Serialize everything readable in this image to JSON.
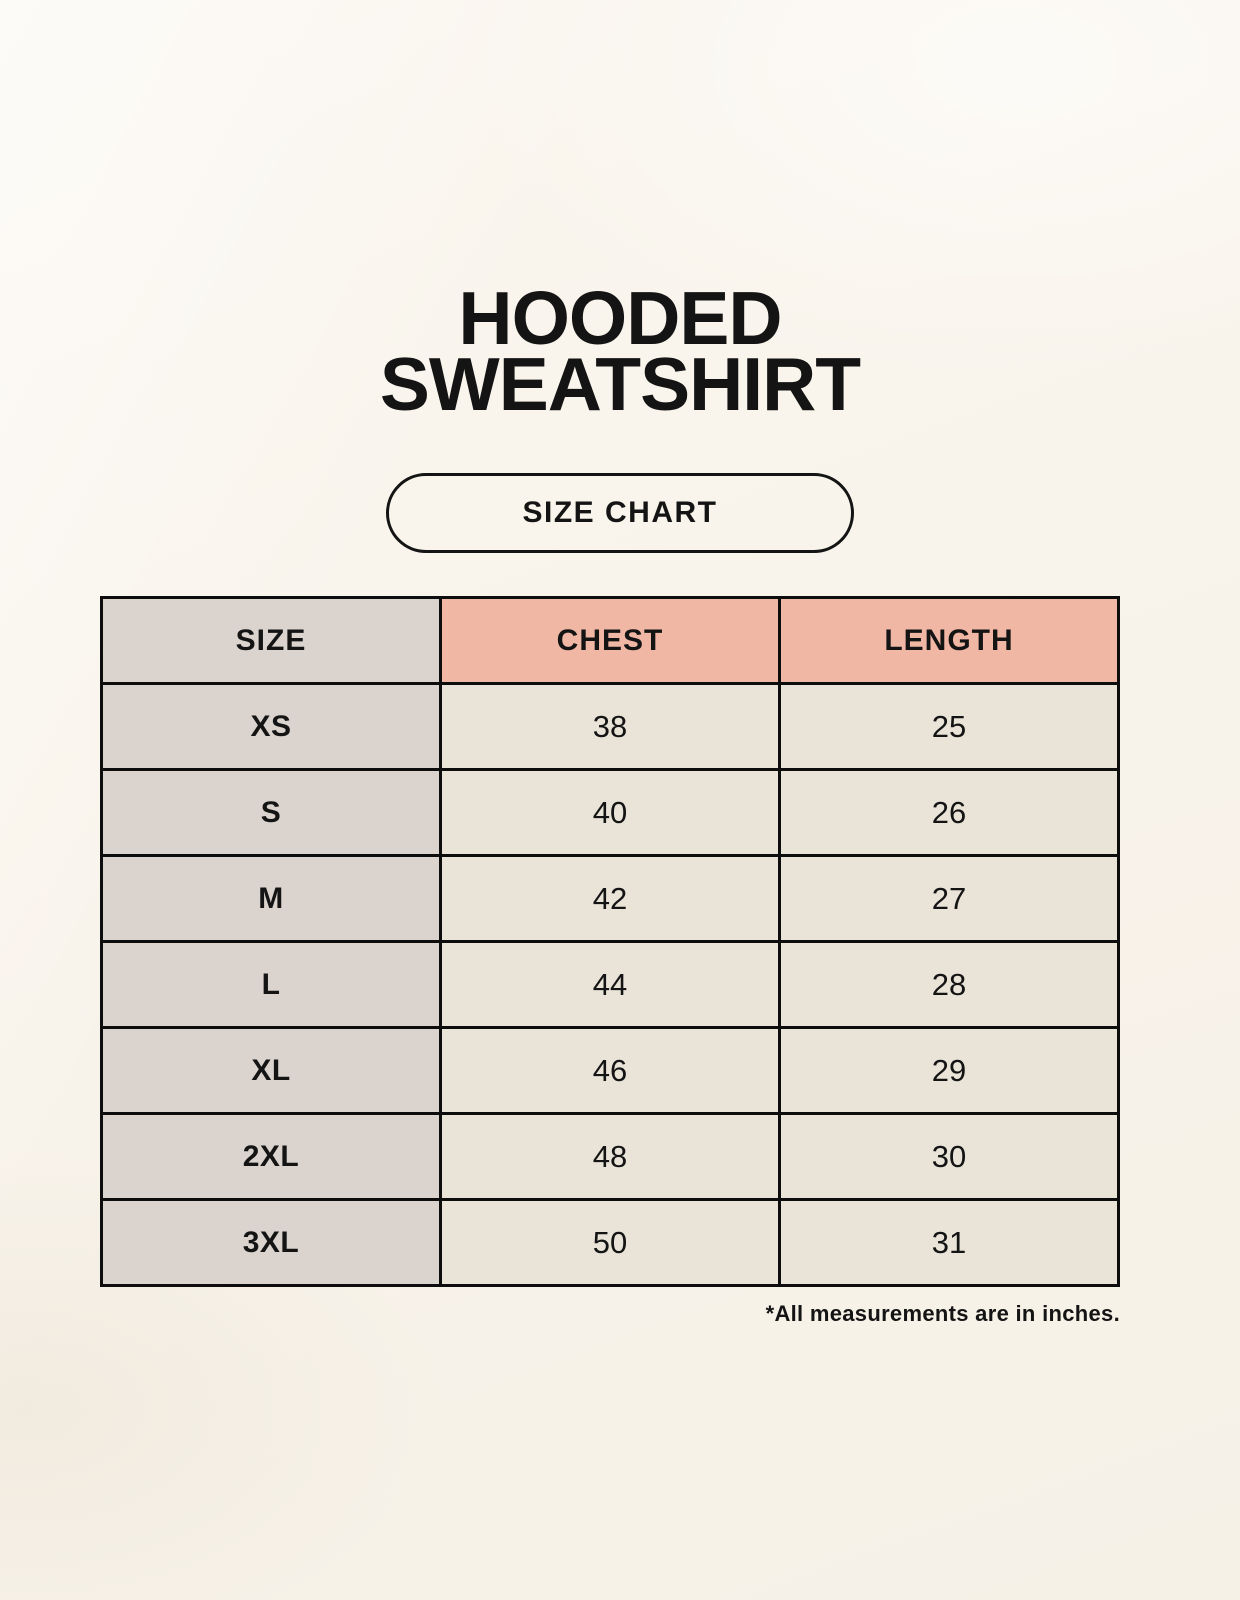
{
  "header": {
    "title_line1": "HOODED",
    "title_line2": "SWEATSHIRT",
    "size_chart_label": "SIZE CHART"
  },
  "table": {
    "columns": [
      "SIZE",
      "CHEST",
      "LENGTH"
    ],
    "rows": [
      {
        "size": "XS",
        "chest": "38",
        "length": "25"
      },
      {
        "size": "S",
        "chest": "40",
        "length": "26"
      },
      {
        "size": "M",
        "chest": "42",
        "length": "27"
      },
      {
        "size": "L",
        "chest": "44",
        "length": "28"
      },
      {
        "size": "XL",
        "chest": "46",
        "length": "29"
      },
      {
        "size": "2XL",
        "chest": "48",
        "length": "30"
      },
      {
        "size": "3XL",
        "chest": "50",
        "length": "31"
      }
    ]
  },
  "footnote": "*All measurements are in inches.",
  "colors": {
    "page_bg": "#f8f4ec",
    "header_accent": "#f1b7a5",
    "size_column_bg": "#dbd4ce",
    "cell_bg": "#e9e3d8",
    "border": "#0d0d0d",
    "text": "#141414"
  }
}
